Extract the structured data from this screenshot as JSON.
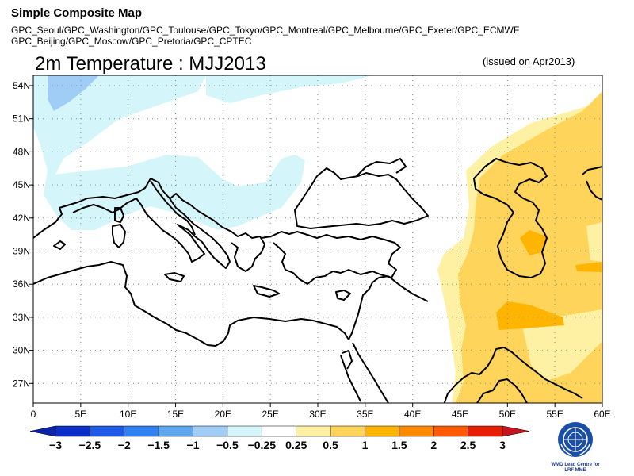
{
  "header": {
    "title": "Simple Composite Map",
    "models_line1": "GPC_Seoul/GPC_Washington/GPC_Toulouse/GPC_Tokyo/GPC_Montreal/GPC_Melbourne/GPC_Exeter/GPC_ECMWF",
    "models_line2": "GPC_Beijing/GPC_Moscow/GPC_Pretoria/GPC_CPTEC"
  },
  "map": {
    "title": "2m Temperature : MJJ2013",
    "issued": "(issued on Apr2013)",
    "lon_ticks": [
      "0",
      "5E",
      "10E",
      "15E",
      "20E",
      "25E",
      "30E",
      "35E",
      "40E",
      "45E",
      "50E",
      "55E",
      "60E"
    ],
    "lat_ticks": [
      "54N",
      "51N",
      "48N",
      "45N",
      "42N",
      "39N",
      "36N",
      "33N",
      "30N",
      "27N"
    ]
  },
  "colorbar": {
    "labels": [
      "−3",
      "−2.5",
      "−2",
      "−1.5",
      "−1",
      "−0.5",
      "−0.25",
      "0.25",
      "0.5",
      "1",
      "1.5",
      "2",
      "2.5",
      "3"
    ],
    "colors": [
      "#0a2fc8",
      "#1e5ae6",
      "#2f82f0",
      "#5ea8f2",
      "#9fcdf5",
      "#d4f6fb",
      "#ffffff",
      "#fff1a3",
      "#ffd45a",
      "#ffb400",
      "#ff8a00",
      "#ff5a00",
      "#e81e00"
    ],
    "left_arrow_color": "#0a22a8",
    "right_arrow_color": "#c8141e"
  },
  "logo": {
    "line1": "WMO Lead Centre for",
    "line2": "LRF MME"
  }
}
